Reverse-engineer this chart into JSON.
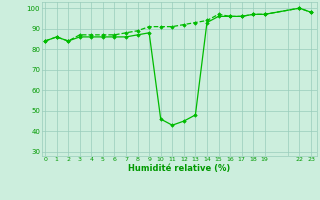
{
  "line_solid_x": [
    0,
    1,
    2,
    3,
    4,
    5,
    6,
    7,
    8,
    9,
    10,
    11,
    12,
    13,
    14,
    15,
    16,
    17,
    18,
    19,
    22,
    23
  ],
  "line_solid_y": [
    84,
    86,
    84,
    86,
    86,
    86,
    86,
    86,
    87,
    88,
    46,
    43,
    45,
    48,
    93,
    96,
    96,
    96,
    97,
    97,
    100,
    98
  ],
  "line_dashed_x": [
    0,
    1,
    2,
    3,
    4,
    5,
    6,
    7,
    8,
    9,
    10,
    11,
    12,
    13,
    14,
    15,
    16,
    17,
    18,
    19,
    22,
    23
  ],
  "line_dashed_y": [
    84,
    86,
    84,
    87,
    87,
    87,
    87,
    88,
    89,
    91,
    91,
    91,
    92,
    93,
    94,
    97,
    96,
    96,
    97,
    97,
    100,
    98
  ],
  "line_color": "#00bb00",
  "bg_color": "#cceedd",
  "grid_color": "#99ccbb",
  "xlabel": "Humidité relative (%)",
  "xlabel_color": "#009900",
  "tick_color": "#009900",
  "yticks": [
    30,
    40,
    50,
    60,
    70,
    80,
    90,
    100
  ],
  "xtick_labels": [
    "0",
    "1",
    "2",
    "3",
    "4",
    "5",
    "6",
    "7",
    "8",
    "9",
    "10",
    "11",
    "12",
    "13",
    "14",
    "15",
    "16",
    "17",
    "18",
    "19",
    "",
    "22",
    "23"
  ],
  "xtick_positions": [
    0,
    1,
    2,
    3,
    4,
    5,
    6,
    7,
    8,
    9,
    10,
    11,
    12,
    13,
    14,
    15,
    16,
    17,
    18,
    19,
    21,
    22,
    23
  ],
  "xlim": [
    -0.3,
    23.5
  ],
  "ylim": [
    28,
    103
  ]
}
